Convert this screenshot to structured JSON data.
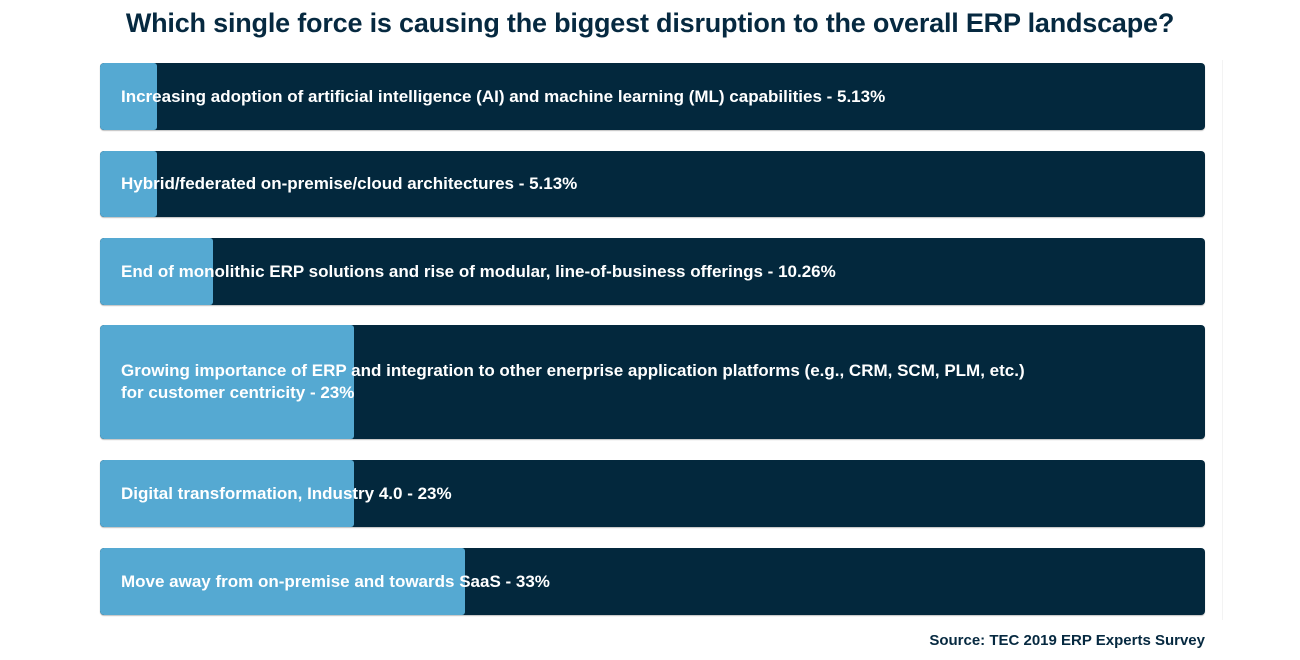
{
  "chart_data": {
    "type": "bar",
    "orientation": "horizontal",
    "title": "Which single force is causing the biggest disruption to the overall ERP landscape?",
    "xlabel": "",
    "ylabel": "",
    "xlim": [
      0,
      100
    ],
    "grid": false,
    "legend": "none",
    "source": "Source: TEC 2019 ERP Experts Survey",
    "colors": {
      "fill": "#55a9d2",
      "track": "#03283d",
      "text": "#ffffff",
      "title": "#062940"
    },
    "categories": [
      "Increasing adoption of artificial intelligence (AI) and machine learning (ML) capabilities",
      "Hybrid/federated on-premise/cloud architectures",
      "End of monolithic ERP solutions and rise of modular, line-of-business offerings",
      "Growing importance of ERP and integration to other enerprise application platforms (e.g., CRM, SCM, PLM, etc.) for customer centricity",
      "Digital transformation, Industry 4.0",
      "Move away from on-premise and towards SaaS"
    ],
    "values": [
      5.13,
      5.13,
      10.26,
      23,
      23,
      33
    ],
    "labels": [
      "Increasing adoption of artificial intelligence (AI) and machine learning (ML) capabilities - 5.13%",
      "Hybrid/federated on-premise/cloud architectures - 5.13%",
      "End of monolithic ERP solutions and rise of modular, line-of-business offerings - 10.26%",
      "Growing importance of ERP and integration to other enerprise application platforms (e.g., CRM, SCM, PLM, etc.)\nfor customer centricity - 23%",
      "Digital transformation, Industry 4.0 - 23%",
      "Move away from on-premise and towards SaaS - 33%"
    ]
  }
}
